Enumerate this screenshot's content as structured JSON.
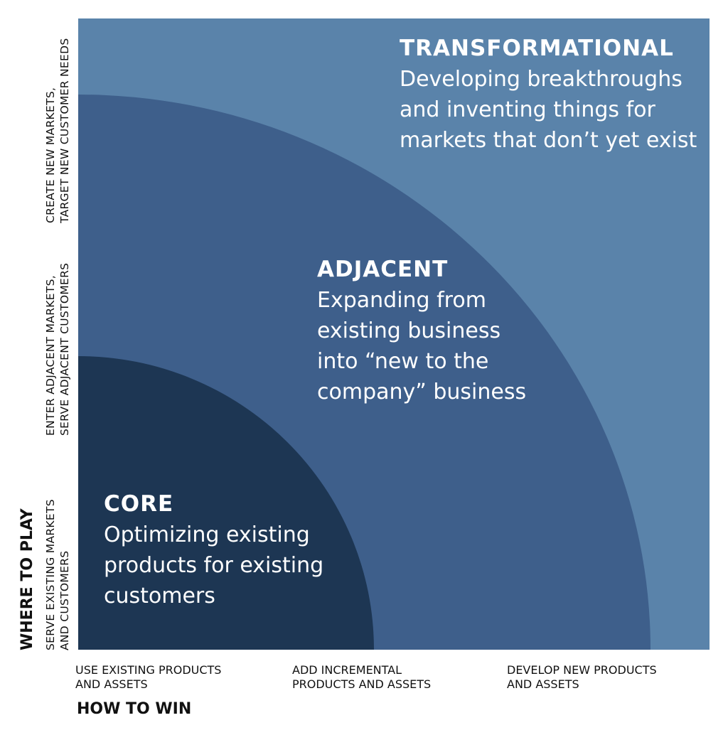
{
  "colors": {
    "transformational": "#5a83aa",
    "adjacent": "#3e5f8b",
    "core": "#1d3653"
  },
  "zones": {
    "transformational": {
      "title": "TRANSFORMATIONAL",
      "lines": [
        "Developing breakthroughs",
        "and inventing things for",
        "markets that don’t yet exist"
      ]
    },
    "adjacent": {
      "title": "ADJACENT",
      "lines": [
        "Expanding from",
        "existing business",
        "into “new to the",
        "company” business"
      ]
    },
    "core": {
      "title": "CORE",
      "lines": [
        "Optimizing existing",
        "products for existing",
        "customers"
      ]
    }
  },
  "y_axis": {
    "title": "WHERE TO PLAY",
    "levels": [
      [
        "SERVE EXISTING MARKETS",
        "AND CUSTOMERS"
      ],
      [
        "ENTER ADJACENT MARKETS,",
        "SERVE ADJACENT CUSTOMERS"
      ],
      [
        "CREATE NEW MARKETS,",
        "TARGET NEW CUSTOMER NEEDS"
      ]
    ]
  },
  "x_axis": {
    "title": "HOW TO WIN",
    "levels": [
      [
        "USE EXISTING PRODUCTS",
        "AND ASSETS"
      ],
      [
        "ADD INCREMENTAL",
        "PRODUCTS AND ASSETS"
      ],
      [
        "DEVELOP NEW PRODUCTS",
        "AND ASSETS"
      ]
    ]
  }
}
